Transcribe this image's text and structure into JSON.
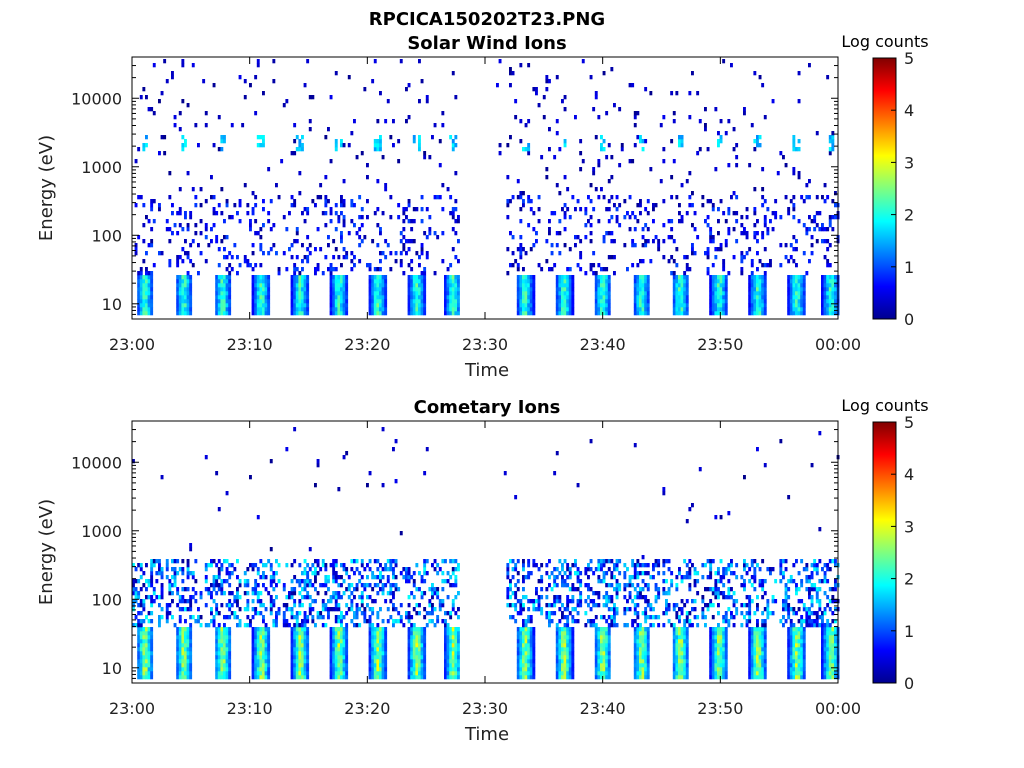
{
  "figure_title": "RPCICA150202T23.PNG",
  "chart_data": [
    {
      "type": "heatmap",
      "title": "Solar Wind Ions",
      "xlabel": "Time",
      "ylabel": "Energy (eV)",
      "x_tick_labels": [
        "23:00",
        "23:10",
        "23:20",
        "23:30",
        "23:40",
        "23:50",
        "00:00"
      ],
      "x_range_minutes": [
        0,
        60
      ],
      "y_tick_labels": [
        "10",
        "100",
        "1000",
        "10000"
      ],
      "y_tick_values": [
        10,
        100,
        1000,
        10000
      ],
      "y_scale": "log",
      "y_range": [
        6,
        40000
      ],
      "colorbar_label": "Log counts",
      "colorbar_ticks": [
        "0",
        "1",
        "2",
        "3",
        "4",
        "5"
      ],
      "colorbar_range": [
        0,
        5
      ],
      "colormap": "jet",
      "data_gap_minutes": [
        27.8,
        30.7
      ],
      "low_energy_burst_minutes": [
        1.0,
        4.3,
        7.6,
        10.9,
        14.2,
        17.5,
        20.8,
        24.1,
        27.2,
        33.3,
        36.6,
        39.9,
        43.2,
        46.5,
        49.8,
        53.1,
        56.4,
        59.3
      ],
      "low_energy_band_eV": [
        7,
        28
      ],
      "burst_peak_log_counts": 2.4,
      "high_energy_spot_eV": [
        1700,
        3100
      ]
    },
    {
      "type": "heatmap",
      "title": "Cometary Ions",
      "xlabel": "Time",
      "ylabel": "Energy (eV)",
      "x_tick_labels": [
        "23:00",
        "23:10",
        "23:20",
        "23:30",
        "23:40",
        "23:50",
        "00:00"
      ],
      "x_range_minutes": [
        0,
        60
      ],
      "y_tick_labels": [
        "10",
        "100",
        "1000",
        "10000"
      ],
      "y_tick_values": [
        10,
        100,
        1000,
        10000
      ],
      "y_scale": "log",
      "y_range": [
        6,
        40000
      ],
      "colorbar_label": "Log counts",
      "colorbar_ticks": [
        "0",
        "1",
        "2",
        "3",
        "4",
        "5"
      ],
      "colorbar_range": [
        0,
        5
      ],
      "colormap": "jet",
      "data_gap_minutes": [
        27.8,
        30.7
      ],
      "low_energy_burst_minutes": [
        1.0,
        4.3,
        7.6,
        10.9,
        14.2,
        17.5,
        20.8,
        24.1,
        27.2,
        33.3,
        36.6,
        39.9,
        43.2,
        46.5,
        49.8,
        53.1,
        56.4,
        59.3
      ],
      "low_energy_band_eV": [
        7,
        40
      ],
      "burst_peak_log_counts": 3.0
    }
  ]
}
